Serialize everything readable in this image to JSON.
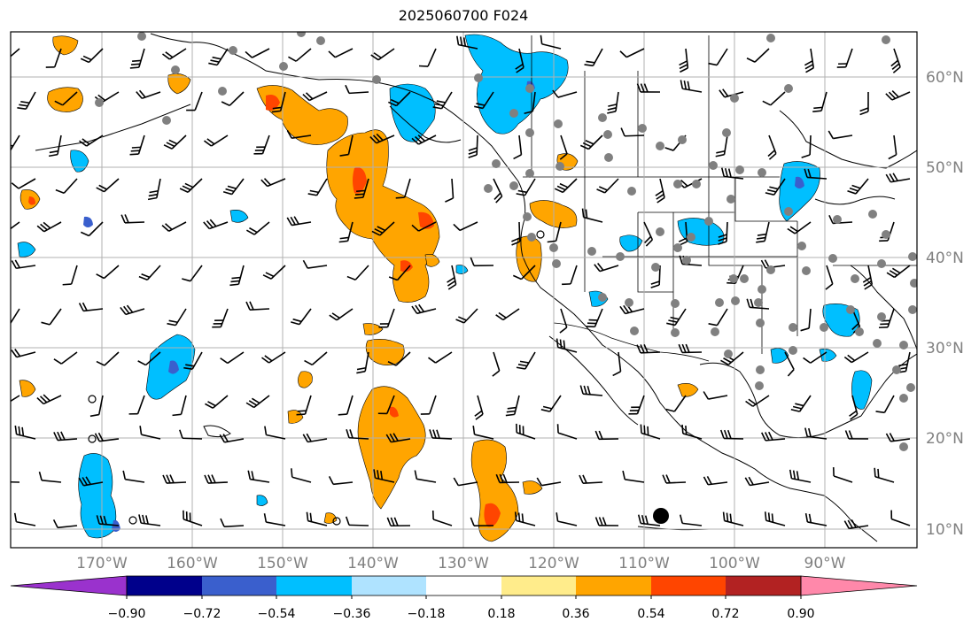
{
  "title": "2025060700 F024",
  "lon_labels": [
    "170°W",
    "160°W",
    "150°W",
    "140°W",
    "130°W",
    "120°W",
    "110°W",
    "100°W",
    "90°W"
  ],
  "lat_labels": [
    "60°N",
    "50°N",
    "40°N",
    "30°N",
    "20°N",
    "10°N"
  ],
  "colorbar": {
    "colors": [
      "#9a32cd",
      "#00008b",
      "#3a5fcd",
      "#00bfff",
      "#afe3ff",
      "#ffffff",
      "#ffec8b",
      "#ffa500",
      "#ff4500",
      "#b22222",
      "#ff88aa"
    ],
    "tick_labels": [
      "−0.90",
      "−0.72",
      "−0.54",
      "−0.36",
      "−0.18",
      "0.18",
      "0.36",
      "0.54",
      "0.72",
      "0.90"
    ]
  }
}
